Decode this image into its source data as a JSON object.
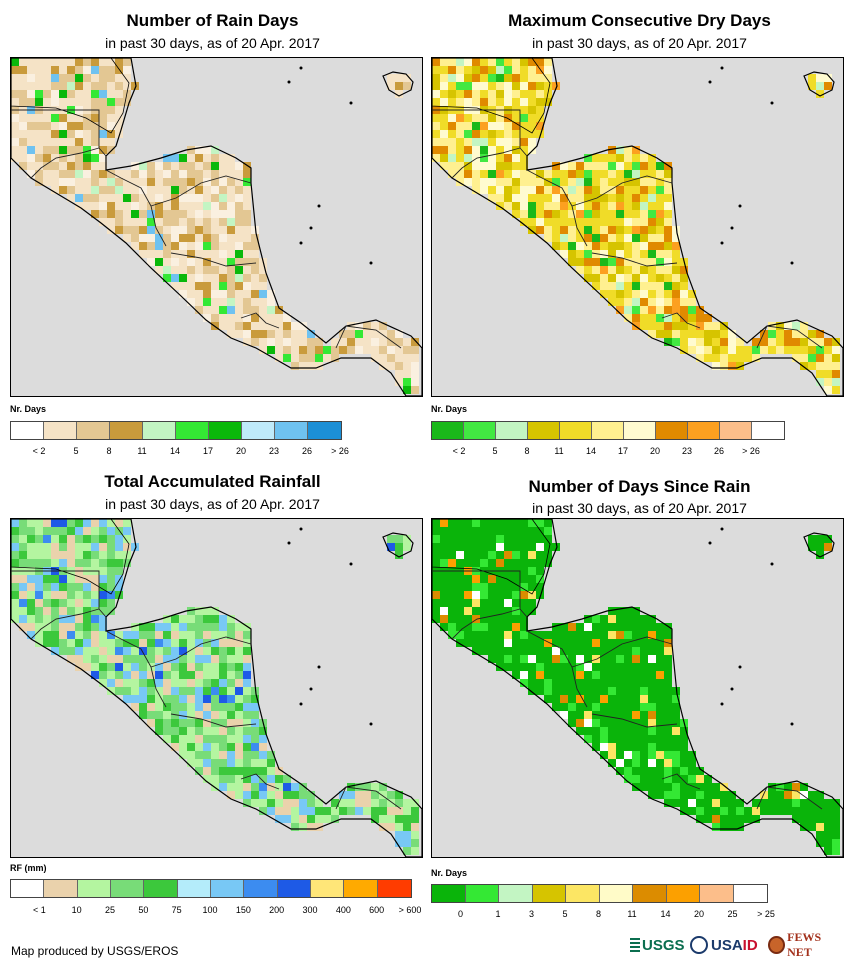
{
  "panels": [
    {
      "title": "Number of Rain Days",
      "subtitle": "in past 30 days, as of 20 Apr. 2017",
      "legend_title": "Nr. Days",
      "colors": [
        "#ffffff",
        "#f5e3c6",
        "#e3c793",
        "#c99b3c",
        "#c3f5c3",
        "#34e834",
        "#0ab80a",
        "#bfeafa",
        "#6fc2f0",
        "#1c8fd6"
      ],
      "ticks": [
        "< 2",
        "5",
        "8",
        "11",
        "14",
        "17",
        "20",
        "23",
        "26",
        "> 26"
      ],
      "land_palette": [
        "#f5e3c6",
        "#f5e3c6",
        "#e3c793",
        "#f5e3c6",
        "#faf0e0",
        "#c99b3c",
        "#e3c793"
      ],
      "accent_palette": [
        "#34e834",
        "#0ab80a",
        "#6fc2f0",
        "#c3f5c3"
      ]
    },
    {
      "title": "Maximum Consecutive Dry Days",
      "subtitle": "in past 30 days, as of 20 Apr. 2017",
      "legend_title": "Nr. Days",
      "colors": [
        "#1ab81a",
        "#42e842",
        "#c3f5c3",
        "#d6c400",
        "#f0dc28",
        "#fff090",
        "#fffbd0",
        "#e08a00",
        "#fca020",
        "#fcbe8a",
        "#ffffff"
      ],
      "ticks": [
        "< 2",
        "5",
        "8",
        "11",
        "14",
        "17",
        "20",
        "23",
        "26",
        "> 26"
      ],
      "land_palette": [
        "#f0dc28",
        "#fff090",
        "#fffbd0",
        "#d6c400",
        "#f0dc28",
        "#fff090",
        "#e08a00"
      ],
      "accent_palette": [
        "#1ab81a",
        "#42e842",
        "#fca020",
        "#c3f5c3"
      ]
    },
    {
      "title": "Total Accumulated Rainfall",
      "subtitle": "in past 30 days, as of 20 Apr. 2017",
      "legend_title": "RF (mm)",
      "colors": [
        "#ffffff",
        "#ead2ac",
        "#b4f5a0",
        "#78dc78",
        "#3cc83c",
        "#b4ecfa",
        "#78c8f5",
        "#3c8cf0",
        "#1e5ae6",
        "#ffe678",
        "#ffaa00",
        "#ff3c00"
      ],
      "ticks": [
        "< 1",
        "10",
        "25",
        "50",
        "75",
        "100",
        "150",
        "200",
        "300",
        "400",
        "600",
        "> 600"
      ],
      "land_palette": [
        "#78dc78",
        "#b4f5a0",
        "#78dc78",
        "#3cc83c",
        "#ead2ac",
        "#b4f5a0",
        "#78c8f5"
      ],
      "accent_palette": [
        "#3c8cf0",
        "#1e5ae6",
        "#78c8f5",
        "#ead2ac"
      ]
    },
    {
      "title": "Number of Days Since Rain",
      "subtitle": "in past 30 days, as of 20 Apr. 2017",
      "legend_title": "Nr. Days",
      "colors": [
        "#0ab40a",
        "#34e834",
        "#c3f5c3",
        "#d6c400",
        "#fce664",
        "#fffbc8",
        "#dc8c00",
        "#fca000",
        "#fcbe8a",
        "#ffffff"
      ],
      "ticks": [
        "0",
        "1",
        "3",
        "5",
        "8",
        "11",
        "14",
        "20",
        "25",
        "> 25"
      ],
      "land_palette": [
        "#0ab40a",
        "#0ab40a",
        "#0ab40a",
        "#0ab40a",
        "#0ab40a",
        "#0ab40a",
        "#34e834"
      ],
      "accent_palette": [
        "#fca000",
        "#fce664",
        "#ffffff",
        "#dc8c00"
      ]
    }
  ],
  "footer_text": "Map produced by USGS/EROS",
  "logos": {
    "usgs": "USGS",
    "usaid_blue": "USA",
    "usaid_red": "ID",
    "fews": "FEWS NET"
  },
  "background_color": "#dcdcdc"
}
